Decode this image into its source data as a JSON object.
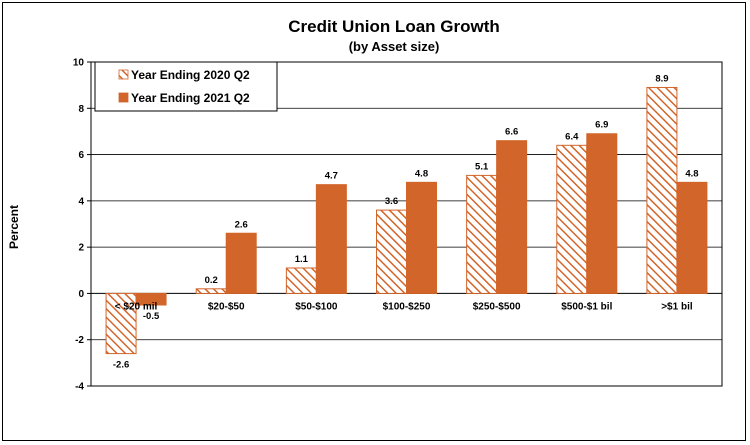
{
  "chart_data": {
    "type": "bar",
    "title": "Credit Union Loan Growth",
    "subtitle": "(by Asset size)",
    "ylabel": "Percent",
    "xlabel": "",
    "ylim": [
      -4,
      10
    ],
    "yticks": [
      -4,
      -2,
      0,
      2,
      4,
      6,
      8,
      10
    ],
    "grid": true,
    "legend_position": "top-left",
    "categories": [
      "< $20 mil",
      "$20-$50",
      "$50-$100",
      "$100-$250",
      "$250-$500",
      "$500-$1 bil",
      ">$1 bil"
    ],
    "series": [
      {
        "name": "Year Ending 2020 Q2",
        "values": [
          -2.6,
          0.2,
          1.1,
          3.6,
          5.1,
          6.4,
          8.9
        ],
        "labels": [
          "-2.6",
          "0.2",
          "1.1",
          "3.6",
          "5.1",
          "6.4",
          "8.9"
        ],
        "color": "#D2652A",
        "pattern": "hatched"
      },
      {
        "name": "Year Ending 2021 Q2",
        "values": [
          -0.5,
          2.6,
          4.7,
          4.8,
          6.6,
          6.9,
          4.8
        ],
        "labels": [
          "-0.5",
          "2.6",
          "4.7",
          "4.8",
          "6.6",
          "6.9",
          "4.8"
        ],
        "color": "#D2652A",
        "pattern": "solid"
      }
    ]
  }
}
